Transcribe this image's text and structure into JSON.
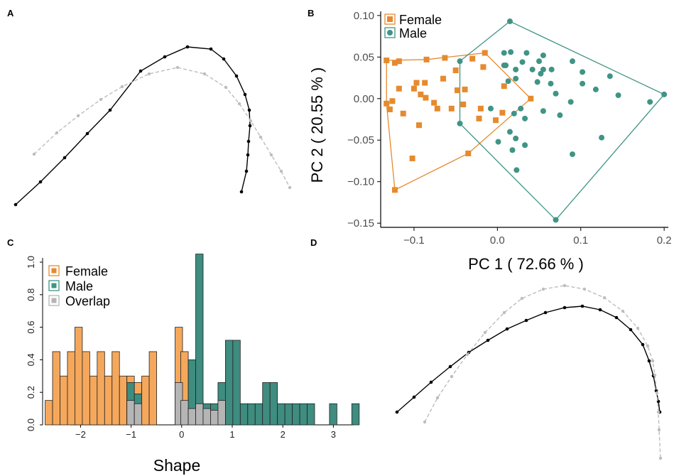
{
  "colors": {
    "female": "#e68a2e",
    "male": "#3f9485",
    "overlap": "#b5b5b5",
    "female_bar": "#f5a85c",
    "male_bar": "#3f8c80",
    "mean_line": "#000000",
    "alt_line": "#bdbdbd"
  },
  "panels": {
    "A": {
      "letter": "A"
    },
    "B": {
      "letter": "B"
    },
    "C": {
      "letter": "C"
    },
    "D": {
      "letter": "D"
    }
  },
  "chart_data": [
    {
      "id": "A",
      "type": "line",
      "series": [
        {
          "style": "solid-black",
          "points": [
            [
              22,
              288
            ],
            [
              57,
              256
            ],
            [
              91,
              222
            ],
            [
              123,
              188
            ],
            [
              155,
              155
            ],
            [
              198,
              100
            ],
            [
              232,
              80
            ],
            [
              264,
              66
            ],
            [
              297,
              69
            ],
            [
              315,
              83
            ],
            [
              333,
              107
            ],
            [
              345,
              133
            ],
            [
              351,
              155
            ],
            [
              352,
              177
            ],
            [
              350,
              199
            ],
            [
              349,
              218
            ],
            [
              347,
              241
            ],
            [
              340,
              270
            ]
          ]
        },
        {
          "style": "dashed-grey",
          "points": [
            [
              48,
              217
            ],
            [
              80,
              187
            ],
            [
              110,
              163
            ],
            [
              142,
              140
            ],
            [
              172,
              122
            ],
            [
              210,
              104
            ],
            [
              250,
              95
            ],
            [
              288,
              104
            ],
            [
              318,
              123
            ],
            [
              337,
              146
            ],
            [
              353,
              170
            ],
            [
              367,
              193
            ],
            [
              382,
              218
            ],
            [
              396,
              241
            ],
            [
              408,
              264
            ]
          ]
        }
      ]
    },
    {
      "id": "B",
      "type": "scatter",
      "xlabel": "PC 1 ( 72.66 % )",
      "ylabel": "PC 2 ( 20.55 % )",
      "xlim": [
        -0.14,
        0.205
      ],
      "ylim": [
        -0.155,
        0.105
      ],
      "xticks": [
        -0.1,
        0.0,
        0.1,
        0.2
      ],
      "xtick_labels": [
        "−0.1",
        "0.0",
        "0.1",
        "0.2"
      ],
      "yticks": [
        0.1,
        0.05,
        0.0,
        -0.05,
        -0.1,
        -0.15
      ],
      "ytick_labels": [
        "0.10",
        "0.05",
        "0.00",
        "−0.05",
        "−0.10",
        "−0.15"
      ],
      "legend": {
        "position": "top-left",
        "entries": [
          "Female",
          "Male"
        ]
      },
      "series": [
        {
          "name": "Female",
          "marker": "square",
          "points": [
            [
              -0.133,
              0.046
            ],
            [
              -0.123,
              0.043
            ],
            [
              -0.118,
              0.045
            ],
            [
              -0.085,
              0.047
            ],
            [
              -0.063,
              0.049
            ],
            [
              -0.03,
              0.048
            ],
            [
              -0.015,
              0.055
            ],
            [
              -0.097,
              0.019
            ],
            [
              -0.087,
              0.019
            ],
            [
              -0.065,
              0.024
            ],
            [
              -0.017,
              0.038
            ],
            [
              0.008,
              0.015
            ],
            [
              -0.05,
              0.034
            ],
            [
              -0.1,
              0.012
            ],
            [
              -0.118,
              0.012
            ],
            [
              -0.092,
              0.005
            ],
            [
              -0.086,
              0.001
            ],
            [
              -0.076,
              -0.005
            ],
            [
              -0.048,
              0.01
            ],
            [
              -0.039,
              0.011
            ],
            [
              -0.126,
              -0.003
            ],
            [
              -0.129,
              -0.013
            ],
            [
              -0.113,
              -0.018
            ],
            [
              -0.094,
              -0.032
            ],
            [
              -0.072,
              -0.012
            ],
            [
              -0.055,
              -0.012
            ],
            [
              -0.041,
              -0.007
            ],
            [
              -0.02,
              -0.012
            ],
            [
              0.006,
              -0.017
            ],
            [
              -0.022,
              -0.024
            ],
            [
              -0.002,
              -0.026
            ],
            [
              -0.123,
              -0.11
            ],
            [
              -0.102,
              -0.072
            ],
            [
              -0.035,
              -0.066
            ],
            [
              0.04,
              0.0
            ],
            [
              -0.133,
              -0.006
            ]
          ]
        },
        {
          "name": "Male",
          "marker": "circle",
          "points": [
            [
              0.015,
              0.093
            ],
            [
              0.008,
              0.055
            ],
            [
              0.016,
              0.056
            ],
            [
              0.035,
              0.055
            ],
            [
              0.055,
              0.052
            ],
            [
              -0.045,
              0.045
            ],
            [
              0.01,
              0.04
            ],
            [
              0.03,
              0.044
            ],
            [
              0.05,
              0.045
            ],
            [
              0.09,
              0.045
            ],
            [
              0.008,
              0.04
            ],
            [
              0.022,
              0.035
            ],
            [
              0.042,
              0.035
            ],
            [
              0.055,
              0.035
            ],
            [
              0.065,
              0.035
            ],
            [
              0.022,
              0.024
            ],
            [
              0.052,
              0.03
            ],
            [
              0.102,
              0.032
            ],
            [
              0.135,
              0.027
            ],
            [
              0.013,
              0.021
            ],
            [
              0.048,
              0.02
            ],
            [
              0.064,
              0.018
            ],
            [
              0.102,
              0.018
            ],
            [
              0.118,
              0.011
            ],
            [
              0.07,
              0.006
            ],
            [
              0.145,
              0.004
            ],
            [
              0.2,
              0.005
            ],
            [
              0.183,
              -0.004
            ],
            [
              0.088,
              -0.004
            ],
            [
              -0.008,
              -0.012
            ],
            [
              0.028,
              -0.012
            ],
            [
              0.055,
              -0.015
            ],
            [
              0.075,
              -0.02
            ],
            [
              -0.045,
              -0.03
            ],
            [
              0.033,
              -0.024
            ],
            [
              0.02,
              -0.018
            ],
            [
              0.125,
              -0.047
            ],
            [
              0.09,
              -0.067
            ],
            [
              0.022,
              -0.048
            ],
            [
              0.001,
              -0.052
            ],
            [
              0.015,
              -0.04
            ],
            [
              0.033,
              -0.056
            ],
            [
              0.018,
              -0.062
            ],
            [
              0.023,
              -0.086
            ],
            [
              0.07,
              -0.146
            ]
          ]
        }
      ],
      "hulls": [
        {
          "name": "Female",
          "points": [
            [
              -0.133,
              0.046
            ],
            [
              -0.085,
              0.047
            ],
            [
              -0.015,
              0.055
            ],
            [
              0.04,
              0.0
            ],
            [
              -0.035,
              -0.066
            ],
            [
              -0.123,
              -0.11
            ],
            [
              -0.133,
              -0.006
            ]
          ]
        },
        {
          "name": "Male",
          "points": [
            [
              0.015,
              0.093
            ],
            [
              0.2,
              0.005
            ],
            [
              0.07,
              -0.146
            ],
            [
              -0.045,
              -0.03
            ],
            [
              -0.045,
              0.045
            ]
          ]
        }
      ]
    },
    {
      "id": "C",
      "type": "bar",
      "xlabel": "Shape",
      "ylabel": "",
      "xlim": [
        -2.75,
        3.5
      ],
      "ylim": [
        0,
        1.05
      ],
      "xticks": [
        -2,
        -1,
        0,
        1,
        2,
        3
      ],
      "xtick_labels": [
        "−2",
        "−1",
        "0",
        "1",
        "2",
        "3"
      ],
      "yticks": [
        0.0,
        0.2,
        0.4,
        0.6,
        0.8,
        1.0
      ],
      "ytick_labels": [
        "0.0",
        "0.2",
        "0.4",
        "0.6",
        "0.8",
        "1.0"
      ],
      "bin_width": 0.147,
      "legend": {
        "position": "top-left",
        "entries": [
          "Female",
          "Male",
          "Overlap"
        ]
      },
      "series": [
        {
          "name": "Female",
          "bins": [
            [
              -2.7,
              0.15
            ],
            [
              -2.553,
              0.45
            ],
            [
              -2.406,
              0.3
            ],
            [
              -2.259,
              0.45
            ],
            [
              -2.112,
              0.6
            ],
            [
              -1.965,
              0.45
            ],
            [
              -1.818,
              0.3
            ],
            [
              -1.671,
              0.45
            ],
            [
              -1.524,
              0.3
            ],
            [
              -1.377,
              0.45
            ],
            [
              -1.23,
              0.3
            ],
            [
              -1.083,
              0.3
            ],
            [
              -0.936,
              0.26
            ],
            [
              -0.789,
              0.3
            ],
            [
              -0.642,
              0.45
            ],
            [
              -0.13,
              0.6
            ],
            [
              -0.017,
              0.45
            ],
            [
              0.13,
              0.15
            ],
            [
              0.277,
              0.15
            ],
            [
              0.424,
              0.1
            ],
            [
              0.571,
              0.09
            ],
            [
              0.718,
              0.15
            ]
          ]
        },
        {
          "name": "Male",
          "bins": [
            [
              -1.083,
              0.26
            ],
            [
              -0.936,
              0.19
            ],
            [
              0.13,
              0.4
            ],
            [
              0.277,
              1.05
            ],
            [
              0.424,
              0.13
            ],
            [
              0.571,
              0.13
            ],
            [
              0.718,
              0.26
            ],
            [
              0.865,
              0.52
            ],
            [
              1.012,
              0.52
            ],
            [
              1.159,
              0.13
            ],
            [
              1.306,
              0.13
            ],
            [
              1.453,
              0.13
            ],
            [
              1.6,
              0.26
            ],
            [
              1.747,
              0.26
            ],
            [
              1.894,
              0.13
            ],
            [
              2.041,
              0.13
            ],
            [
              2.188,
              0.13
            ],
            [
              2.335,
              0.13
            ],
            [
              2.482,
              0.13
            ],
            [
              2.923,
              0.13
            ],
            [
              3.364,
              0.13
            ]
          ]
        },
        {
          "name": "Overlap",
          "bins": [
            [
              -1.083,
              0.15
            ],
            [
              -0.936,
              0.13
            ],
            [
              -0.13,
              0.26
            ],
            [
              -0.017,
              0.15
            ],
            [
              0.13,
              0.1
            ],
            [
              0.277,
              0.13
            ],
            [
              0.424,
              0.1
            ],
            [
              0.571,
              0.09
            ],
            [
              0.718,
              0.15
            ]
          ]
        }
      ]
    },
    {
      "id": "D",
      "type": "line",
      "series": [
        {
          "style": "solid-black",
          "points": [
            [
              559,
              580
            ],
            [
              583,
              559
            ],
            [
              607,
              538
            ],
            [
              634,
              516
            ],
            [
              660,
              496
            ],
            [
              687,
              479
            ],
            [
              714,
              463
            ],
            [
              741,
              451
            ],
            [
              768,
              440
            ],
            [
              795,
              433
            ],
            [
              820,
              431
            ],
            [
              845,
              436
            ],
            [
              868,
              447
            ],
            [
              888,
              464
            ],
            [
              905,
              485
            ],
            [
              914,
              508
            ],
            [
              920,
              529
            ],
            [
              924,
              550
            ],
            [
              927,
              565
            ],
            [
              929,
              580
            ]
          ]
        },
        {
          "style": "dashed-grey",
          "points": [
            [
              598,
              594
            ],
            [
              616,
              560
            ],
            [
              636,
              530
            ],
            [
              658,
              499
            ],
            [
              683,
              468
            ],
            [
              710,
              440
            ],
            [
              735,
              420
            ],
            [
              765,
              407
            ],
            [
              795,
              402
            ],
            [
              823,
              407
            ],
            [
              851,
              419
            ],
            [
              877,
              438
            ],
            [
              898,
              462
            ],
            [
              912,
              487
            ],
            [
              919,
              508
            ],
            [
              922,
              528
            ],
            [
              925,
              553
            ],
            [
              927,
              580
            ],
            [
              928,
              605
            ],
            [
              930,
              645
            ]
          ]
        }
      ]
    }
  ]
}
